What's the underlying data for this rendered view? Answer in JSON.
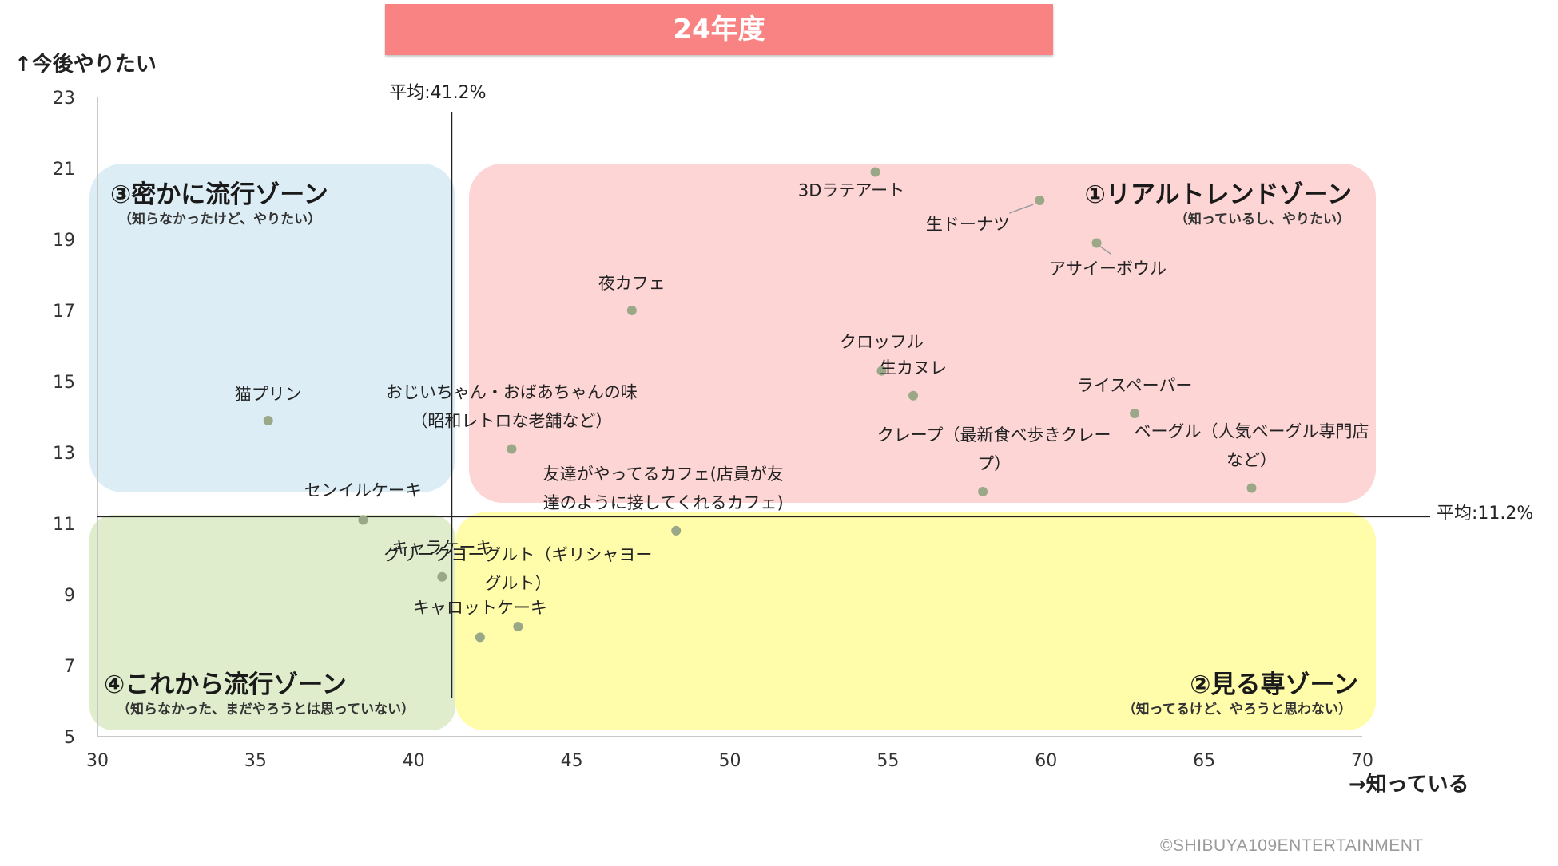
{
  "title": "24年度",
  "y_axis_title": "↑今後やりたい",
  "x_axis_title": "→知っている",
  "copyright": "©SHIBUYA109ENTERTAINMENT",
  "colors": {
    "banner": "#f98282",
    "zone1": "#fdd5d5",
    "zone2": "#fffcaa",
    "zone3": "#dcedf5",
    "zone4": "#dfedcd",
    "point": "#9aa888"
  },
  "zones": [
    {
      "id": "zone1",
      "title": "①リアルトレンドゾーン",
      "subtitle": "（知っているし、やりたい）"
    },
    {
      "id": "zone2",
      "title": "②見る専ゾーン",
      "subtitle": "（知ってるけど、やろうと思わない）"
    },
    {
      "id": "zone3",
      "title": "③密かに流行ゾーン",
      "subtitle": "（知らなかったけど、やりたい）"
    },
    {
      "id": "zone4",
      "title": "④これから流行ゾーン",
      "subtitle": "（知らなかった、まだやろうとは思っていない）"
    }
  ],
  "chart_data": {
    "type": "scatter",
    "xlim": [
      30,
      70
    ],
    "ylim": [
      5,
      23
    ],
    "x_ticks": [
      30,
      35,
      40,
      45,
      50,
      55,
      60,
      65,
      70
    ],
    "y_ticks": [
      5,
      7,
      9,
      11,
      13,
      15,
      17,
      19,
      21,
      23
    ],
    "averages": {
      "x": 41.2,
      "x_label": "平均:41.2%",
      "y": 11.2,
      "y_label": "平均:11.2%"
    },
    "points": [
      {
        "label": [
          "3Dラテアート"
        ],
        "x": 54.6,
        "y": 20.9
      },
      {
        "label": [
          "生ドーナツ"
        ],
        "x": 59.8,
        "y": 20.1
      },
      {
        "label": [
          "アサイーボウル"
        ],
        "x": 61.6,
        "y": 18.9
      },
      {
        "label": [
          "夜カフェ"
        ],
        "x": 46.9,
        "y": 17.0
      },
      {
        "label": [
          "クロッフル"
        ],
        "x": 54.8,
        "y": 15.3
      },
      {
        "label": [
          "生カヌレ"
        ],
        "x": 55.8,
        "y": 14.6
      },
      {
        "label": [
          "ライスペーパー"
        ],
        "x": 62.8,
        "y": 14.1
      },
      {
        "label": [
          "猫プリン"
        ],
        "x": 35.4,
        "y": 13.9
      },
      {
        "label": [
          "おじいちゃん・おばあちゃんの味",
          "（昭和レトロな老舗など）"
        ],
        "x": 43.1,
        "y": 13.1
      },
      {
        "label": [
          "クレープ（最新食べ歩きクレー",
          "プ）"
        ],
        "x": 58.0,
        "y": 11.9
      },
      {
        "label": [
          "ベーグル（人気ベーグル専門店",
          "など）"
        ],
        "x": 66.5,
        "y": 12.0
      },
      {
        "label": [
          "センイルケーキ"
        ],
        "x": 38.4,
        "y": 11.1
      },
      {
        "label": [
          "友達がやってるカフェ(店員が友",
          "達のように接してくれるカフェ)"
        ],
        "x": 48.3,
        "y": 10.8
      },
      {
        "label": [
          "キャラケーキ"
        ],
        "x": 40.9,
        "y": 9.5
      },
      {
        "label": [
          "グリークヨーグルト（ギリシャヨー",
          "グルト）"
        ],
        "x": 43.3,
        "y": 8.1
      },
      {
        "label": [
          "キャロットケーキ"
        ],
        "x": 42.1,
        "y": 7.8
      }
    ]
  }
}
